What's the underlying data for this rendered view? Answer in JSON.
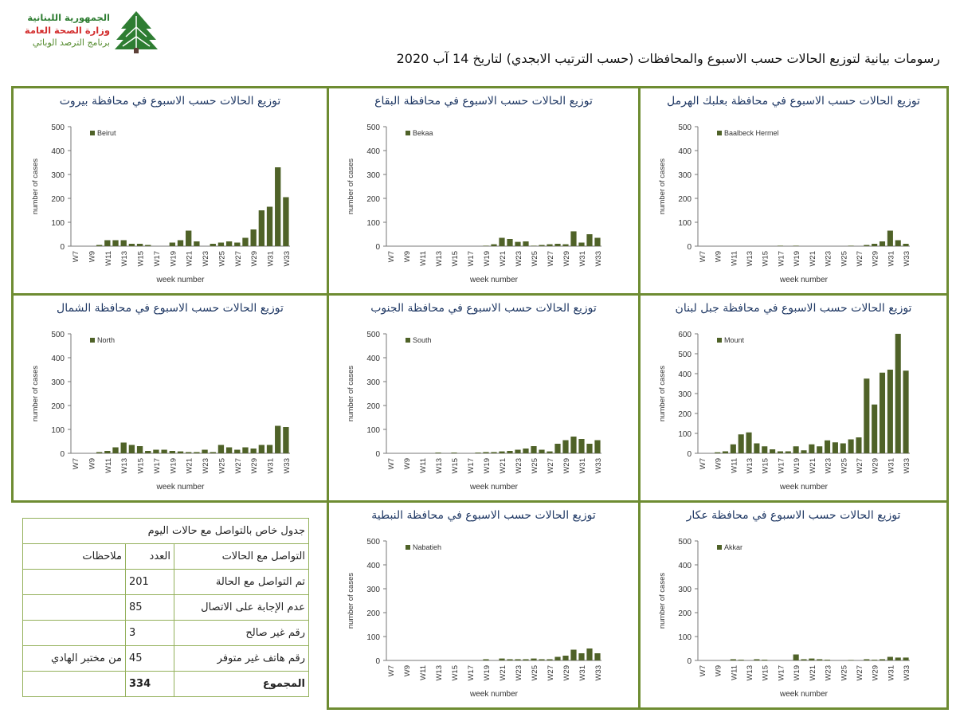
{
  "header": {
    "logo": {
      "line1": "الجمهورية اللبنانية",
      "line2": "وزارة الصحة العامة",
      "line3": "برنامج الترصد الوبائي",
      "tree_color": "#2e7d32"
    },
    "title": "رسومات بيانية لتوزيع الحالات حسب الاسبوع  والمحافظات (حسب الترتيب الابجدي) لتاريخ  14 آب 2020"
  },
  "colors": {
    "bar": "#4f6228",
    "border": "#6e8c32",
    "title": "#1f3864",
    "table_border": "#93b05a"
  },
  "chart_data": [
    {
      "id": "beirut",
      "type": "bar",
      "title": "توزيع الحالات حسب الاسبوع  في محافظة بيروت",
      "legend": "Beirut",
      "xlabel": "week number",
      "ylabel": "number of cases",
      "ylim": [
        0,
        500
      ],
      "yticks": [
        0,
        100,
        200,
        300,
        400,
        500
      ],
      "tick_labels": [
        "W7",
        "W9",
        "W11",
        "W13",
        "W15",
        "W17",
        "W19",
        "W21",
        "W23",
        "W25",
        "W27",
        "W29",
        "W31",
        "W33"
      ],
      "values": [
        0,
        0,
        0,
        5,
        25,
        25,
        25,
        10,
        10,
        5,
        0,
        0,
        15,
        25,
        65,
        20,
        0,
        10,
        15,
        20,
        15,
        35,
        70,
        150,
        165,
        330,
        205
      ]
    },
    {
      "id": "bekaa",
      "type": "bar",
      "title": "توزيع الحالات حسب الاسبوع  في محافظة البقاع",
      "legend": "Bekaa",
      "xlabel": "week number",
      "ylabel": "number of cases",
      "ylim": [
        0,
        500
      ],
      "yticks": [
        0,
        100,
        200,
        300,
        400,
        500
      ],
      "tick_labels": [
        "W7",
        "W9",
        "W11",
        "W13",
        "W15",
        "W17",
        "W19",
        "W21",
        "W23",
        "W25",
        "W27",
        "W29",
        "W31",
        "W33"
      ],
      "values": [
        0,
        0,
        0,
        0,
        0,
        0,
        0,
        0,
        0,
        0,
        0,
        0,
        2,
        8,
        35,
        30,
        18,
        20,
        2,
        5,
        8,
        10,
        8,
        62,
        15,
        50,
        35
      ]
    },
    {
      "id": "baalbeck",
      "type": "bar",
      "title": "توزيع الحالات حسب الاسبوع  في محافظة بعلبك الهرمل",
      "legend": "Baalbeck Hermel",
      "xlabel": "week number",
      "ylabel": "number of cases",
      "ylim": [
        0,
        500
      ],
      "yticks": [
        0,
        100,
        200,
        300,
        400,
        500
      ],
      "tick_labels": [
        "W7",
        "W9",
        "W11",
        "W13",
        "W15",
        "W17",
        "W19",
        "W21",
        "W23",
        "W25",
        "W27",
        "W29",
        "W31",
        "W33"
      ],
      "values": [
        0,
        0,
        0,
        0,
        0,
        0,
        0,
        0,
        0,
        0,
        2,
        0,
        2,
        0,
        0,
        0,
        0,
        0,
        0,
        2,
        0,
        5,
        10,
        20,
        65,
        25,
        10
      ]
    },
    {
      "id": "north",
      "type": "bar",
      "title": "توزيع الحالات حسب الاسبوع  في محافظة الشمال",
      "legend": "North",
      "xlabel": "week number",
      "ylabel": "number of cases",
      "ylim": [
        0,
        500
      ],
      "yticks": [
        0,
        100,
        200,
        300,
        400,
        500
      ],
      "tick_labels": [
        "W7",
        "W9",
        "W11",
        "W13",
        "W15",
        "W17",
        "W19",
        "W21",
        "W23",
        "W25",
        "W27",
        "W29",
        "W31",
        "W33"
      ],
      "values": [
        0,
        0,
        0,
        5,
        10,
        25,
        45,
        35,
        30,
        10,
        15,
        15,
        10,
        8,
        5,
        5,
        15,
        5,
        35,
        25,
        15,
        25,
        20,
        35,
        35,
        115,
        110
      ]
    },
    {
      "id": "south",
      "type": "bar",
      "title": "توزيع الحالات حسب الاسبوع  في محافظة الجنوب",
      "legend": "South",
      "xlabel": "week number",
      "ylabel": "number of cases",
      "ylim": [
        0,
        500
      ],
      "yticks": [
        0,
        100,
        200,
        300,
        400,
        500
      ],
      "tick_labels": [
        "W7",
        "W9",
        "W11",
        "W13",
        "W15",
        "W17",
        "W19",
        "W21",
        "W23",
        "W25",
        "W27",
        "W29",
        "W31",
        "W33"
      ],
      "values": [
        0,
        0,
        0,
        0,
        0,
        0,
        3,
        0,
        3,
        0,
        0,
        3,
        5,
        5,
        8,
        10,
        15,
        20,
        30,
        15,
        8,
        40,
        55,
        70,
        60,
        40,
        55
      ]
    },
    {
      "id": "mount",
      "type": "bar",
      "title": "توزيع الحالات حسب الاسبوع  في محافظة جبل لبنان",
      "legend": "Mount",
      "xlabel": "week number",
      "ylabel": "number of cases",
      "ylim": [
        0,
        600
      ],
      "yticks": [
        0,
        100,
        200,
        300,
        400,
        500,
        600
      ],
      "tick_labels": [
        "W7",
        "W9",
        "W11",
        "W13",
        "W15",
        "W17",
        "W19",
        "W21",
        "W23",
        "W25",
        "W27",
        "W29",
        "W31",
        "W33"
      ],
      "values": [
        0,
        0,
        5,
        10,
        45,
        95,
        105,
        50,
        35,
        20,
        10,
        10,
        35,
        15,
        45,
        35,
        65,
        55,
        50,
        70,
        80,
        375,
        245,
        405,
        420,
        600,
        415
      ]
    },
    {
      "id": "nabatieh",
      "type": "bar",
      "title": "توزيع الحالات حسب الاسبوع  في محافظة النبطية",
      "legend": "Nabatieh",
      "xlabel": "week number",
      "ylabel": "number of cases",
      "ylim": [
        0,
        500
      ],
      "yticks": [
        0,
        100,
        200,
        300,
        400,
        500
      ],
      "tick_labels": [
        "W7",
        "W9",
        "W11",
        "W13",
        "W15",
        "W17",
        "W19",
        "W21",
        "W23",
        "W25",
        "W27",
        "W29",
        "W31",
        "W33"
      ],
      "values": [
        0,
        0,
        0,
        0,
        0,
        0,
        0,
        0,
        0,
        0,
        0,
        0,
        5,
        0,
        8,
        5,
        5,
        5,
        8,
        5,
        5,
        15,
        20,
        45,
        30,
        50,
        30
      ]
    },
    {
      "id": "akkar",
      "type": "bar",
      "title": "توزيع الحالات حسب  الاسبوع  في محافظة عكار",
      "legend": "Akkar",
      "xlabel": "week number",
      "ylabel": "number of cases",
      "ylim": [
        0,
        500
      ],
      "yticks": [
        0,
        100,
        200,
        300,
        400,
        500
      ],
      "tick_labels": [
        "W7",
        "W9",
        "W11",
        "W13",
        "W15",
        "W17",
        "W19",
        "W21",
        "W23",
        "W25",
        "W27",
        "W29",
        "W31",
        "W33"
      ],
      "values": [
        0,
        0,
        0,
        0,
        5,
        3,
        0,
        5,
        3,
        0,
        0,
        0,
        25,
        5,
        8,
        5,
        3,
        0,
        0,
        2,
        0,
        5,
        3,
        5,
        15,
        12,
        12
      ]
    }
  ],
  "contact_table": {
    "title": "جدول خاص بالتواصل مع حالات اليوم",
    "headers": [
      "التواصل مع الحالات",
      "العدد",
      "ملاحظات"
    ],
    "rows": [
      [
        "تم التواصل مع الحالة",
        "201",
        ""
      ],
      [
        "عدم الإجابة على الاتصال",
        "85",
        ""
      ],
      [
        "رقم غير صالح",
        "3",
        ""
      ],
      [
        "رقم هاتف غير متوفر",
        "45",
        "من مختبر الهادي"
      ]
    ],
    "total": [
      "المجموع",
      "334",
      ""
    ]
  }
}
